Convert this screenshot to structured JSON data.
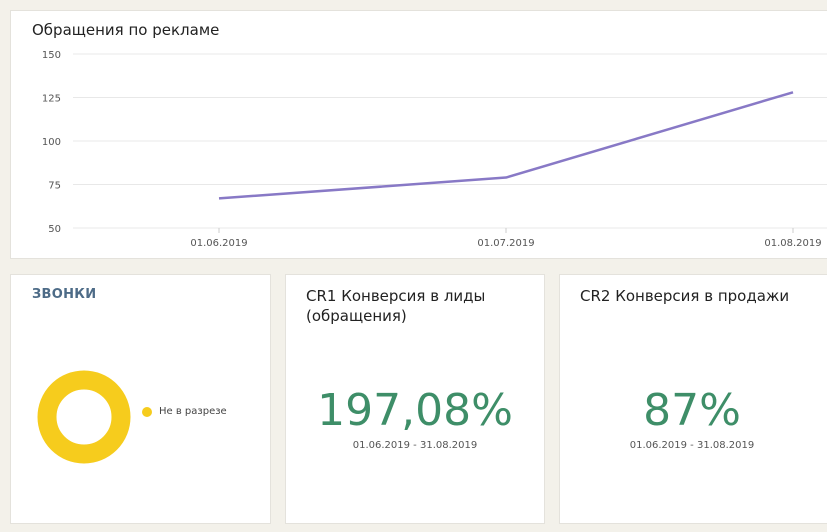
{
  "chart_card": {
    "title": "Обращения по рекламе"
  },
  "chart_data": {
    "type": "line",
    "title": "Обращения по рекламе",
    "x": [
      "01.06.2019",
      "01.07.2019",
      "01.08.2019"
    ],
    "y_ticks": [
      150,
      125,
      100,
      75,
      50
    ],
    "ylim": [
      50,
      150
    ],
    "grid": true,
    "series": [
      {
        "values": [
          67,
          79,
          128
        ],
        "color": "#8879c6"
      }
    ]
  },
  "calls_card": {
    "title": "ЗВОНКИ",
    "legend_label": "Не в разрезе",
    "donut_color": "#f6cc1d",
    "donut_share": 1.0
  },
  "cr1_card": {
    "title": "CR1 Конверсия в лиды (обращения)",
    "value": "197,08%",
    "period": "01.06.2019 - 31.08.2019"
  },
  "cr2_card": {
    "title": "CR2 Конверсия в продажи",
    "value": "87%",
    "period": "01.06.2019 - 31.08.2019"
  },
  "colors": {
    "accent_green": "#3e8e68",
    "title_blue": "#4d6b87",
    "line_purple": "#8879c6"
  }
}
